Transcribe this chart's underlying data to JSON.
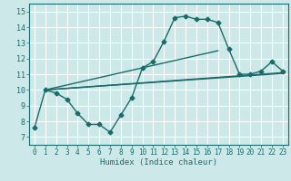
{
  "xlabel": "Humidex (Indice chaleur)",
  "ylabel": "",
  "bg_color": "#cde8e8",
  "grid_color": "#ffffff",
  "line_color": "#1a6b6b",
  "marker": "D",
  "markersize": 2.5,
  "linewidth": 1.0,
  "xlim": [
    -0.5,
    23.5
  ],
  "ylim": [
    6.5,
    15.5
  ],
  "yticks": [
    7,
    8,
    9,
    10,
    11,
    12,
    13,
    14,
    15
  ],
  "xticks": [
    0,
    1,
    2,
    3,
    4,
    5,
    6,
    7,
    8,
    9,
    10,
    11,
    12,
    13,
    14,
    15,
    16,
    17,
    18,
    19,
    20,
    21,
    22,
    23
  ],
  "line1_x": [
    0,
    1,
    2,
    3,
    4,
    5,
    6,
    7,
    8,
    9,
    10,
    11,
    12,
    13,
    14,
    15,
    16,
    17,
    18,
    19,
    20,
    21,
    22,
    23
  ],
  "line1_y": [
    7.6,
    10.0,
    9.8,
    9.4,
    8.5,
    7.8,
    7.8,
    7.3,
    8.4,
    9.5,
    11.4,
    11.8,
    13.1,
    14.6,
    14.7,
    14.5,
    14.5,
    14.3,
    12.6,
    11.0,
    11.0,
    11.2,
    11.8,
    11.2
  ],
  "line2_x": [
    1,
    23
  ],
  "line2_y": [
    10.0,
    11.1
  ],
  "line3_x": [
    1,
    23
  ],
  "line3_y": [
    10.0,
    11.05
  ],
  "line4_x": [
    1,
    17
  ],
  "line4_y": [
    10.0,
    12.5
  ]
}
